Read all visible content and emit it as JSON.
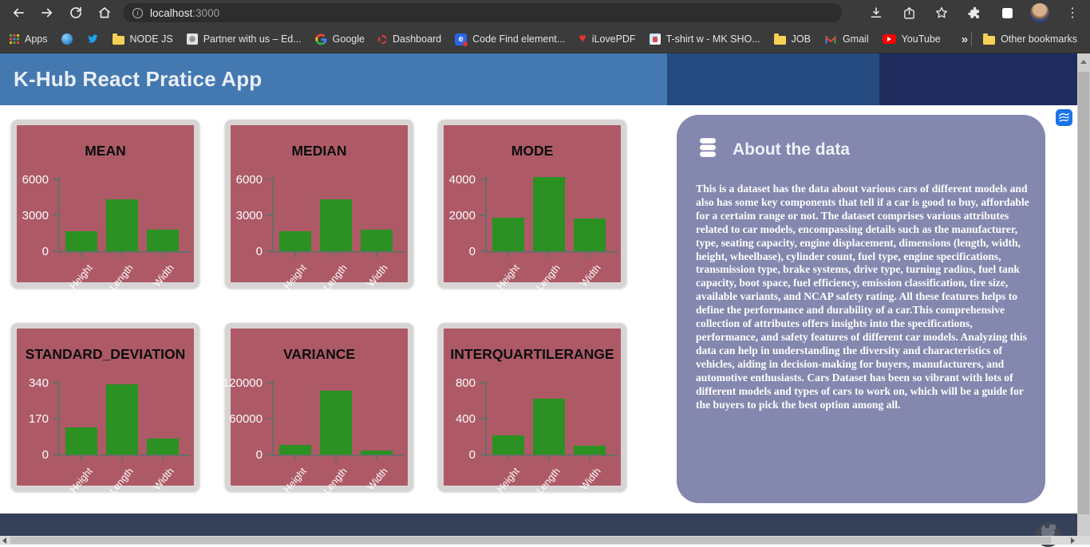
{
  "browser": {
    "toolbar": {
      "url_host": "localhost",
      "url_port": ":3000"
    },
    "bookmarks": [
      {
        "label": "Apps",
        "icon": "apps-grid"
      },
      {
        "label": "",
        "icon": "blue-circle"
      },
      {
        "label": "",
        "icon": "twitter-bird"
      },
      {
        "label": "NODE JS",
        "icon": "folder"
      },
      {
        "label": "Partner with us – Ed...",
        "icon": "site-gray"
      },
      {
        "label": "Google",
        "icon": "google-g"
      },
      {
        "label": "Dashboard",
        "icon": "dashed-red-circle"
      },
      {
        "label": "Code Find element...",
        "icon": "code-e"
      },
      {
        "label": "iLovePDF",
        "icon": "red-heart"
      },
      {
        "label": "T-shirt w - MK SHO...",
        "icon": "tshirt-favicon"
      },
      {
        "label": "JOB",
        "icon": "folder"
      },
      {
        "label": "Gmail",
        "icon": "gmail-m"
      },
      {
        "label": "YouTube",
        "icon": "youtube-play"
      }
    ],
    "bookmarks_overflow": "»",
    "other_bookmarks_label": "Other bookmarks"
  },
  "header": {
    "title": "K-Hub React Pratice App"
  },
  "chart_data": [
    {
      "type": "bar",
      "title": "MEAN",
      "categories": [
        "Height",
        "Length",
        "Width"
      ],
      "values": [
        1650,
        4300,
        1800
      ],
      "yticks": [
        0,
        3000,
        6000
      ],
      "bar_color": "#2a9122"
    },
    {
      "type": "bar",
      "title": "MEDIAN",
      "categories": [
        "Height",
        "Length",
        "Width"
      ],
      "values": [
        1650,
        4350,
        1790
      ],
      "yticks": [
        0,
        3000,
        6000
      ],
      "bar_color": "#2a9122"
    },
    {
      "type": "bar",
      "title": "MODE",
      "categories": [
        "Height",
        "Length",
        "Width"
      ],
      "values": [
        1850,
        4110,
        1800
      ],
      "yticks": [
        0,
        2000,
        4000
      ],
      "bar_color": "#2a9122"
    },
    {
      "type": "bar",
      "title": "STANDARD_DEVIATION",
      "categories": [
        "Height",
        "Length",
        "Width"
      ],
      "values": [
        128,
        334,
        76
      ],
      "yticks": [
        0,
        170,
        340
      ],
      "bar_color": "#2a9122"
    },
    {
      "type": "bar",
      "title": "VARIANCE",
      "categories": [
        "Height",
        "Length",
        "Width"
      ],
      "values": [
        16000,
        107000,
        6000
      ],
      "yticks": [
        0,
        60000,
        120000
      ],
      "bar_color": "#2a9122"
    },
    {
      "type": "bar",
      "title": "INTERQUARTILERANGE",
      "categories": [
        "Height",
        "Length",
        "Width"
      ],
      "values": [
        213,
        619,
        98
      ],
      "yticks": [
        0,
        400,
        800
      ],
      "bar_color": "#2a9122"
    }
  ],
  "about": {
    "title": "About the data",
    "body": "This is a dataset has the data about various cars of different models and also has some key components that tell if a car is good to buy, affordable for a certaim range or not. The dataset comprises various attributes related to car models, encompassing details such as the manufacturer, type, seating capacity, engine displacement, dimensions (length, width, height, wheelbase), cylinder count, fuel type, engine specifications, transmission type, brake systems, drive type, turning radius, fuel tank capacity, boot space, fuel efficiency, emission classification, tire size, available variants, and NCAP safety rating. All these features helps to define the performance and durability of a car.This comprehensive collection of attributes offers insights into the specifications, performance, and safety features of different car models. Analyzing this data can help in understanding the diversity and characteristics of vehicles, aiding in decision-making for buyers, manufacturers, and automotive enthusiasts. Cars Dataset has been so vibrant with lots of different models and types of cars to work on, which will be a guide for the buyers to pick the best option among all."
  },
  "colors": {
    "header_blue": "#4478b1",
    "header_mid_blue": "#254b80",
    "header_dark_blue": "#202a5c",
    "card_bg": "#ad5a66",
    "card_border": "#d8d4d4",
    "bar_green": "#2a9122",
    "about_bg": "#8487ae",
    "footer_bg": "#344158",
    "toolbar_bg": "#3b3b3b",
    "accent_blue": "#1a73e8"
  }
}
